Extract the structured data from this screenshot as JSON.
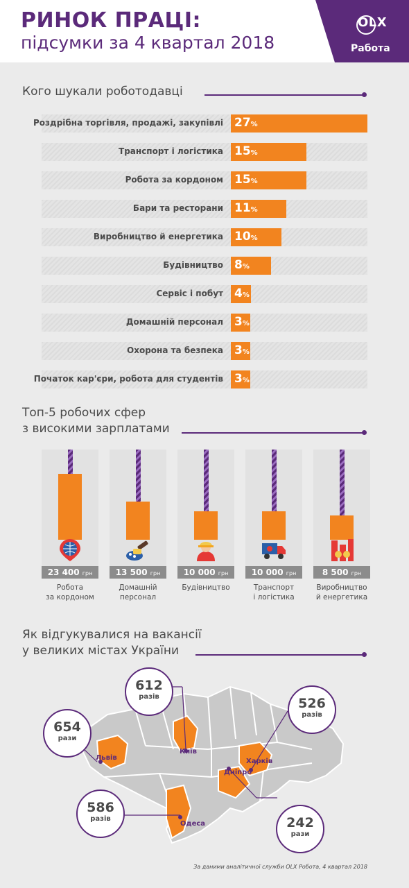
{
  "header": {
    "title_line1": "РИНОК ПРАЦІ:",
    "title_line2": "підсумки за 4 квартал 2018",
    "logo": "OLX",
    "logo_sub": "Работа",
    "accent": "#5b2a7a",
    "orange": "#f2841f"
  },
  "section1": {
    "title": "Кого шукали роботодавці"
  },
  "section2": {
    "title_line1": "Топ-5 робочих сфер",
    "title_line2": "з високими зарплатами"
  },
  "section3": {
    "title_line1": "Як відгукувалися на вакансії",
    "title_line2": "у великих містах України"
  },
  "chart_data": [
    {
      "type": "bar",
      "title": "Кого шукали роботодавці",
      "unit": "%",
      "categories": [
        "Роздрібна торгівля, продажі, закупівлі",
        "Транспорт і логістика",
        "Робота за кордоном",
        "Бари та ресторани",
        "Виробництво й енергетика",
        "Будівництво",
        "Сервіс і побут",
        "Домашній персонал",
        "Охорона та безпека",
        "Початок кар'єри, робота для студентів"
      ],
      "values": [
        27,
        15,
        15,
        11,
        10,
        8,
        4,
        3,
        3,
        3
      ]
    },
    {
      "type": "bar",
      "title": "Топ-5 робочих сфер з високими зарплатами",
      "unit": "грн",
      "categories": [
        {
          "line1": "Робота",
          "line2": "за кордоном",
          "icon": "globe-pin-icon"
        },
        {
          "line1": "Домашній",
          "line2": "персонал",
          "icon": "cleaning-icon"
        },
        {
          "line1": "Будівництво",
          "line2": "",
          "icon": "builder-icon"
        },
        {
          "line1": "Транспорт",
          "line2": "і логістика",
          "icon": "truck-icon"
        },
        {
          "line1": "Виробництво",
          "line2": "й енергетика",
          "icon": "factory-icon"
        }
      ],
      "values": [
        23400,
        13500,
        10000,
        10000,
        8500
      ],
      "value_labels": [
        "23 400",
        "13 500",
        "10 000",
        "10 000",
        "8 500"
      ]
    }
  ],
  "map": {
    "cities": [
      {
        "name": "Львів",
        "count": "654",
        "unit": "рази"
      },
      {
        "name": "Київ",
        "count": "612",
        "unit": "разів"
      },
      {
        "name": "Харків",
        "count": "526",
        "unit": "разів"
      },
      {
        "name": "Одеса",
        "count": "586",
        "unit": "разів"
      },
      {
        "name": "Дніпро",
        "count": "242",
        "unit": "рази"
      }
    ]
  },
  "footer": "За даними аналітичної служби OLX Робота, 4 квартал 2018"
}
